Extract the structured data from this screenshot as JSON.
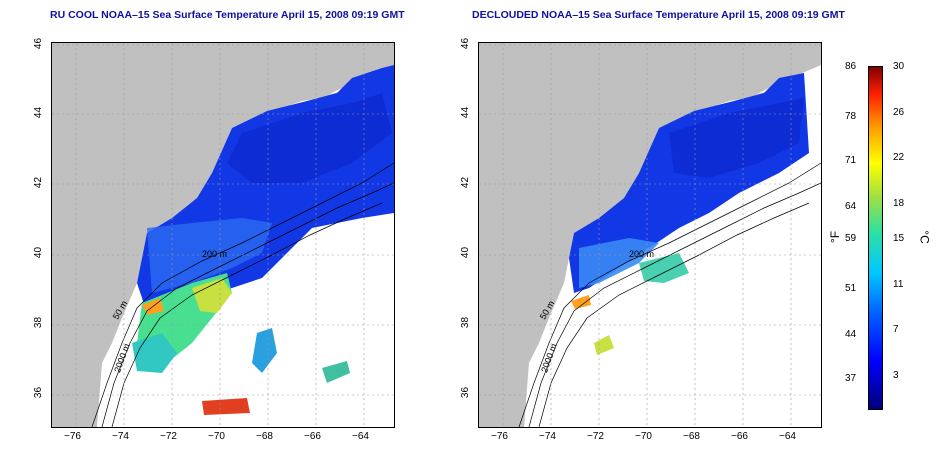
{
  "left_map": {
    "title": "RU COOL NOAA–15 Sea Surface Temperature April 15, 2008 09:19 GMT"
  },
  "right_map": {
    "title": "DECLOUDED NOAA–15 Sea Surface Temperature April 15, 2008 09:19 GMT"
  },
  "axes": {
    "lon_ticks": [
      "−76",
      "−74",
      "−72",
      "−70",
      "−68",
      "−66",
      "−64"
    ],
    "lat_ticks": [
      "36",
      "38",
      "40",
      "42",
      "44",
      "46"
    ]
  },
  "contours": {
    "label_50": "50 m",
    "label_200": "200 m",
    "label_2000": "2000 m"
  },
  "colorbar": {
    "fahrenheit_label": "°F",
    "celsius_label": "°C",
    "f_ticks": [
      "86",
      "78",
      "71",
      "64",
      "59",
      "51",
      "44",
      "37"
    ],
    "c_ticks": [
      "30",
      "26",
      "22",
      "18",
      "15",
      "11",
      "7",
      "3"
    ]
  },
  "colors": {
    "land": "#c0c0c0",
    "ocean_cold": "#0a3ce8",
    "title": "#1010a0"
  }
}
